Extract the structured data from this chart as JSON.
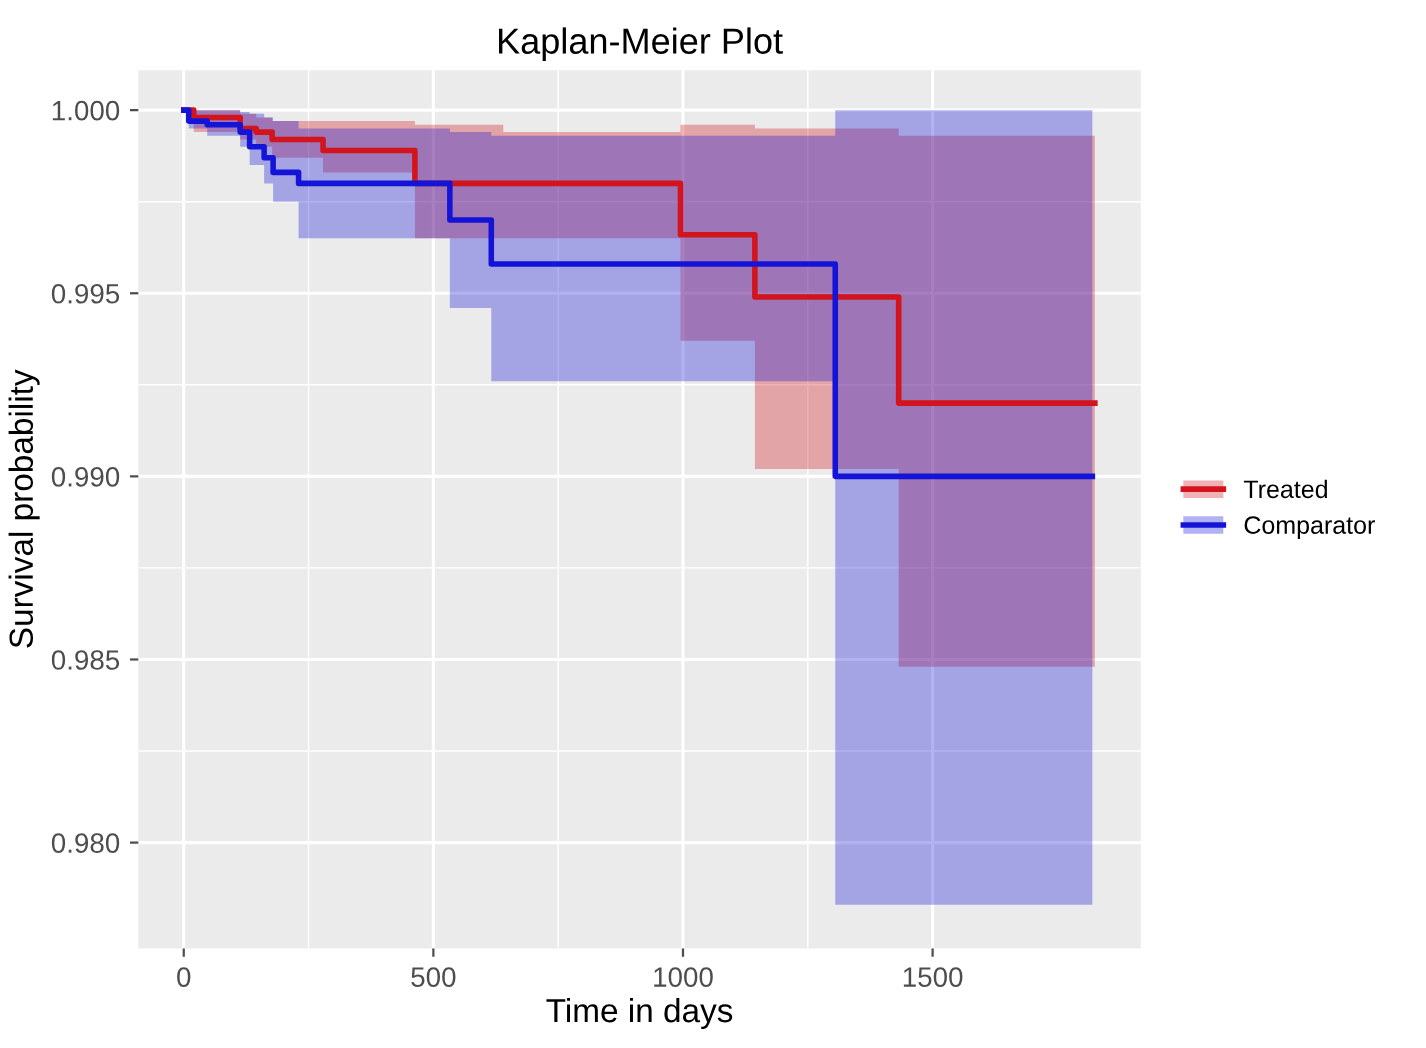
{
  "chart_data": {
    "type": "step",
    "title": "Kaplan-Meier Plot",
    "xlabel": "Time in days",
    "ylabel": "Survival probability",
    "xlim": [
      -91,
      1917
    ],
    "ylim": [
      0.97711,
      1.00109
    ],
    "xticks": [
      0,
      500,
      1000,
      1500
    ],
    "yticks": [
      {
        "value": 0.98,
        "label": "0.980"
      },
      {
        "value": 0.985,
        "label": "0.985"
      },
      {
        "value": 0.99,
        "label": "0.990"
      },
      {
        "value": 0.995,
        "label": "0.995"
      },
      {
        "value": 1.0,
        "label": "1.000"
      }
    ],
    "grid": true,
    "legend": "right",
    "series": [
      {
        "name": "Treated",
        "color": "#d2141c",
        "x": [
          0,
          20,
          113,
          145,
          177,
          279,
          463,
          640,
          995,
          1144,
          1432,
          1825
        ],
        "values": [
          1.0,
          0.9998,
          0.9995,
          0.9994,
          0.9992,
          0.9989,
          0.998,
          0.998,
          0.9966,
          0.9949,
          0.992,
          0.992
        ],
        "lower": [
          1.0,
          0.9994,
          0.9992,
          0.999,
          0.9987,
          0.9983,
          0.9965,
          0.9965,
          0.9937,
          0.9902,
          0.9848,
          0.9848
        ],
        "upper": [
          1.0,
          1.0,
          0.9999,
          0.9998,
          0.9997,
          0.9997,
          0.9996,
          0.9994,
          0.9996,
          0.9995,
          0.9993,
          0.9993
        ]
      },
      {
        "name": "Comparator",
        "color": "#1414d8",
        "x": [
          0,
          10,
          47,
          113,
          132,
          161,
          179,
          230,
          533,
          616,
          1305,
          1820
        ],
        "values": [
          1.0,
          0.9997,
          0.9996,
          0.9994,
          0.999,
          0.9987,
          0.9983,
          0.998,
          0.997,
          0.9958,
          0.99,
          0.99
        ],
        "lower": [
          1.0,
          0.9995,
          0.9993,
          0.999,
          0.9985,
          0.998,
          0.9975,
          0.9965,
          0.9946,
          0.9926,
          0.9783,
          0.9783
        ],
        "upper": [
          1.0,
          1.0,
          1.0,
          0.99995,
          0.9999,
          0.9998,
          0.9997,
          0.9995,
          0.9994,
          0.9993,
          1.0,
          1.0
        ]
      }
    ]
  }
}
